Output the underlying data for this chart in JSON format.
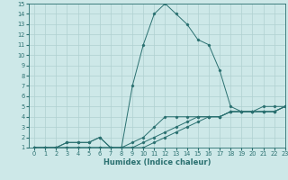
{
  "xlabel": "Humidex (Indice chaleur)",
  "xlim": [
    -0.5,
    23
  ],
  "ylim": [
    1,
    15
  ],
  "background_color": "#cde8e8",
  "grid_color": "#b0d0d0",
  "line_color": "#2a7070",
  "x_ticks": [
    0,
    1,
    2,
    3,
    4,
    5,
    6,
    7,
    8,
    9,
    10,
    11,
    12,
    13,
    14,
    15,
    16,
    17,
    18,
    19,
    20,
    21,
    22,
    23
  ],
  "y_ticks": [
    1,
    2,
    3,
    4,
    5,
    6,
    7,
    8,
    9,
    10,
    11,
    12,
    13,
    14,
    15
  ],
  "curves": [
    {
      "x": [
        0,
        1,
        2,
        3,
        4,
        5,
        6,
        7,
        8,
        9,
        10,
        11,
        12,
        13,
        14,
        15,
        16,
        17,
        18,
        19,
        20,
        21,
        22,
        23
      ],
      "y": [
        1,
        1,
        1,
        1,
        1,
        1,
        1,
        1,
        1,
        1,
        1,
        1.5,
        2,
        2.5,
        3,
        3.5,
        4,
        4,
        4.5,
        4.5,
        4.5,
        5,
        5,
        5
      ]
    },
    {
      "x": [
        0,
        1,
        2,
        3,
        4,
        5,
        6,
        7,
        8,
        9,
        10,
        11,
        12,
        13,
        14,
        15,
        16,
        17,
        18,
        19,
        20,
        21,
        22,
        23
      ],
      "y": [
        1,
        1,
        1,
        1,
        1,
        1,
        1,
        1,
        1,
        1,
        1.5,
        2,
        2.5,
        3,
        3.5,
        4,
        4,
        4,
        4.5,
        4.5,
        4.5,
        4.5,
        4.5,
        5
      ]
    },
    {
      "x": [
        0,
        1,
        2,
        3,
        4,
        5,
        6,
        7,
        8,
        9,
        10,
        11,
        12,
        13,
        14,
        15,
        16,
        17,
        18,
        19,
        20,
        21,
        22,
        23
      ],
      "y": [
        1,
        1,
        1,
        1.5,
        1.5,
        1.5,
        2,
        1,
        1,
        1.5,
        2,
        3,
        4,
        4,
        4,
        4,
        4,
        4,
        4.5,
        4.5,
        4.5,
        4.5,
        4.5,
        5
      ]
    },
    {
      "x": [
        0,
        1,
        2,
        3,
        4,
        5,
        6,
        7,
        8,
        9,
        10,
        11,
        12,
        13,
        14,
        15,
        16,
        17,
        18,
        19,
        20,
        21,
        22,
        23
      ],
      "y": [
        1,
        1,
        1,
        1.5,
        1.5,
        1.5,
        2,
        1,
        1,
        7,
        11,
        14,
        15,
        14,
        13,
        11.5,
        11,
        8.5,
        5,
        4.5,
        4.5,
        4.5,
        4.5,
        5
      ]
    }
  ]
}
